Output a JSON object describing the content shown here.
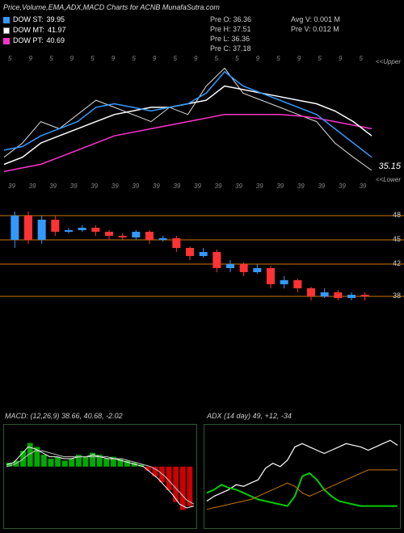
{
  "title": "Price,Volume,EMA,ADX,MACD Charts for ACNB MunafaSutra.com",
  "legend": {
    "st": {
      "label": "DOW ST:",
      "value": "39.95",
      "color": "#3399ff"
    },
    "mt": {
      "label": "DOW MT:",
      "value": "41.97",
      "color": "#ffffff"
    },
    "pt": {
      "label": "DOW PT:",
      "value": "40.69",
      "color": "#ff33cc"
    }
  },
  "info1": [
    {
      "k": "Pre O:",
      "v": "36.36"
    },
    {
      "k": "Pre H:",
      "v": "37.51"
    },
    {
      "k": "Pre L:",
      "v": "36.36"
    },
    {
      "k": "Pre C:",
      "v": "37.18"
    }
  ],
  "info2": [
    {
      "k": "Avg V:",
      "v": "0.001 M"
    },
    {
      "k": "Pre V:",
      "v": "0.012 M"
    }
  ],
  "upper_label": "<<Upper",
  "lower_label": "<<Lower",
  "price_display": "35.15",
  "price_chart": {
    "ylim": [
      33,
      50
    ],
    "ema_st": {
      "color": "#3399ff",
      "pts": [
        38,
        38.5,
        40,
        41,
        42,
        44,
        44.5,
        44,
        43.5,
        44,
        44.5,
        46,
        49,
        47,
        46,
        45,
        44,
        43,
        41,
        39,
        37
      ]
    },
    "ema_mt": {
      "color": "#ffffff",
      "pts": [
        36,
        37,
        39,
        40,
        41,
        42,
        43,
        43.5,
        44,
        44,
        44.5,
        45,
        47,
        46.5,
        46,
        45.5,
        45,
        44.5,
        43.5,
        42,
        40
      ]
    },
    "ema_pt": {
      "color": "#ff33cc",
      "pts": [
        35,
        35.5,
        36,
        37,
        38,
        39,
        40,
        40.5,
        41,
        41.5,
        42,
        42.5,
        43,
        43,
        43,
        43,
        42.8,
        42.5,
        42,
        41.5,
        41
      ]
    },
    "price": {
      "color": "#dddddd",
      "pts": [
        37,
        39,
        42,
        41,
        43,
        45,
        44,
        43,
        42,
        44,
        43,
        47,
        49.5,
        46,
        45,
        44,
        43,
        42,
        39,
        37,
        35.15
      ]
    }
  },
  "ticks_top": [
    "5",
    "9",
    "5",
    "9",
    "5",
    "9",
    "5",
    "9",
    "5",
    "9",
    "5",
    "5",
    "9",
    "5",
    "9",
    "5",
    "9",
    "5"
  ],
  "ticks_bot": [
    "39",
    "39",
    "39",
    "39",
    "39",
    "39",
    "39",
    "39",
    "39",
    "39",
    "39",
    "39",
    "39",
    "39",
    "39",
    "39",
    "39",
    "39"
  ],
  "candle_chart": {
    "ylim": [
      36,
      49
    ],
    "hlines": [
      48,
      45,
      42,
      38
    ],
    "hline_color": "#cc7700",
    "up_color": "#3399ff",
    "dn_color": "#ff3333",
    "candles": [
      {
        "o": 45,
        "c": 48,
        "h": 48.5,
        "l": 44
      },
      {
        "o": 48,
        "c": 45,
        "h": 48.5,
        "l": 44.5
      },
      {
        "o": 45,
        "c": 47.5,
        "h": 48,
        "l": 44.5
      },
      {
        "o": 47.5,
        "c": 46,
        "h": 48,
        "l": 45.5
      },
      {
        "o": 46,
        "c": 46.2,
        "h": 46.5,
        "l": 45.8
      },
      {
        "o": 46.2,
        "c": 46.5,
        "h": 46.8,
        "l": 46
      },
      {
        "o": 46.5,
        "c": 46,
        "h": 46.8,
        "l": 45.5
      },
      {
        "o": 46,
        "c": 45.5,
        "h": 46.2,
        "l": 45
      },
      {
        "o": 45.5,
        "c": 45.3,
        "h": 45.8,
        "l": 45
      },
      {
        "o": 45.3,
        "c": 46,
        "h": 46.2,
        "l": 45
      },
      {
        "o": 46,
        "c": 45,
        "h": 46.2,
        "l": 44.5
      },
      {
        "o": 45,
        "c": 45.2,
        "h": 45.5,
        "l": 44.8
      },
      {
        "o": 45.2,
        "c": 44,
        "h": 45.5,
        "l": 43.5
      },
      {
        "o": 44,
        "c": 43,
        "h": 44.2,
        "l": 42.5
      },
      {
        "o": 43,
        "c": 43.5,
        "h": 44,
        "l": 42.8
      },
      {
        "o": 43.5,
        "c": 41.5,
        "h": 43.8,
        "l": 41
      },
      {
        "o": 41.5,
        "c": 42,
        "h": 42.5,
        "l": 41
      },
      {
        "o": 42,
        "c": 41,
        "h": 42.2,
        "l": 40.5
      },
      {
        "o": 41,
        "c": 41.5,
        "h": 42,
        "l": 40.8
      },
      {
        "o": 41.5,
        "c": 39.5,
        "h": 41.8,
        "l": 39
      },
      {
        "o": 39.5,
        "c": 40,
        "h": 40.5,
        "l": 39
      },
      {
        "o": 40,
        "c": 39,
        "h": 40.2,
        "l": 38.5
      },
      {
        "o": 39,
        "c": 38,
        "h": 39.2,
        "l": 37.5
      },
      {
        "o": 38,
        "c": 38.5,
        "h": 39,
        "l": 37.8
      },
      {
        "o": 38.5,
        "c": 37.8,
        "h": 38.8,
        "l": 37.5
      },
      {
        "o": 37.8,
        "c": 38.2,
        "h": 38.5,
        "l": 37.5
      },
      {
        "o": 38.2,
        "c": 38,
        "h": 38.5,
        "l": 37.5
      }
    ]
  },
  "macd": {
    "title": "MACD:",
    "params": "(12,26,9) 38.66, 40.68, -2.02",
    "ylim": [
      -3,
      2
    ],
    "bar_pos_color": "#00aa00",
    "bar_neg_color": "#cc0000",
    "line1_color": "#ffffff",
    "line2_color": "#cccccc",
    "bars": [
      0.2,
      0.3,
      0.8,
      1.2,
      1.0,
      0.6,
      0.4,
      0.5,
      0.3,
      0.4,
      0.6,
      0.5,
      0.7,
      0.6,
      0.4,
      0.5,
      0.4,
      0.3,
      0.2,
      0.1,
      -0.2,
      -0.5,
      -0.8,
      -1.2,
      -1.8,
      -2.2,
      -2.0
    ],
    "line1": [
      0.1,
      0.2,
      0.6,
      1.0,
      0.9,
      0.7,
      0.5,
      0.5,
      0.4,
      0.4,
      0.5,
      0.5,
      0.6,
      0.5,
      0.4,
      0.4,
      0.3,
      0.2,
      0.1,
      0,
      -0.3,
      -0.6,
      -1.0,
      -1.4,
      -1.9,
      -2.1,
      -2.0
    ],
    "line2": [
      0,
      0.1,
      0.3,
      0.6,
      0.8,
      0.8,
      0.7,
      0.6,
      0.5,
      0.5,
      0.5,
      0.5,
      0.5,
      0.5,
      0.5,
      0.4,
      0.4,
      0.3,
      0.2,
      0.1,
      0,
      -0.2,
      -0.5,
      -0.9,
      -1.3,
      -1.7,
      -1.9
    ]
  },
  "adx": {
    "title": "ADX",
    "params": "(14 day) 49, +12, -34",
    "ylim": [
      0,
      60
    ],
    "adx_color": "#ffffff",
    "pdi_color": "#00cc00",
    "ndi_color": "#cc7700",
    "adx_line": [
      15,
      18,
      20,
      22,
      25,
      24,
      26,
      28,
      35,
      38,
      36,
      40,
      48,
      50,
      48,
      46,
      44,
      46,
      48,
      50,
      49,
      48,
      46,
      48,
      50,
      52,
      49
    ],
    "pdi_line": [
      20,
      22,
      25,
      23,
      22,
      20,
      18,
      16,
      15,
      14,
      13,
      12,
      18,
      30,
      32,
      28,
      22,
      18,
      15,
      14,
      13,
      12,
      12,
      12,
      12,
      12,
      12
    ],
    "ndi_line": [
      10,
      11,
      12,
      13,
      14,
      15,
      16,
      18,
      20,
      22,
      24,
      26,
      24,
      20,
      18,
      20,
      22,
      24,
      26,
      28,
      30,
      32,
      34,
      34,
      34,
      34,
      34
    ]
  }
}
